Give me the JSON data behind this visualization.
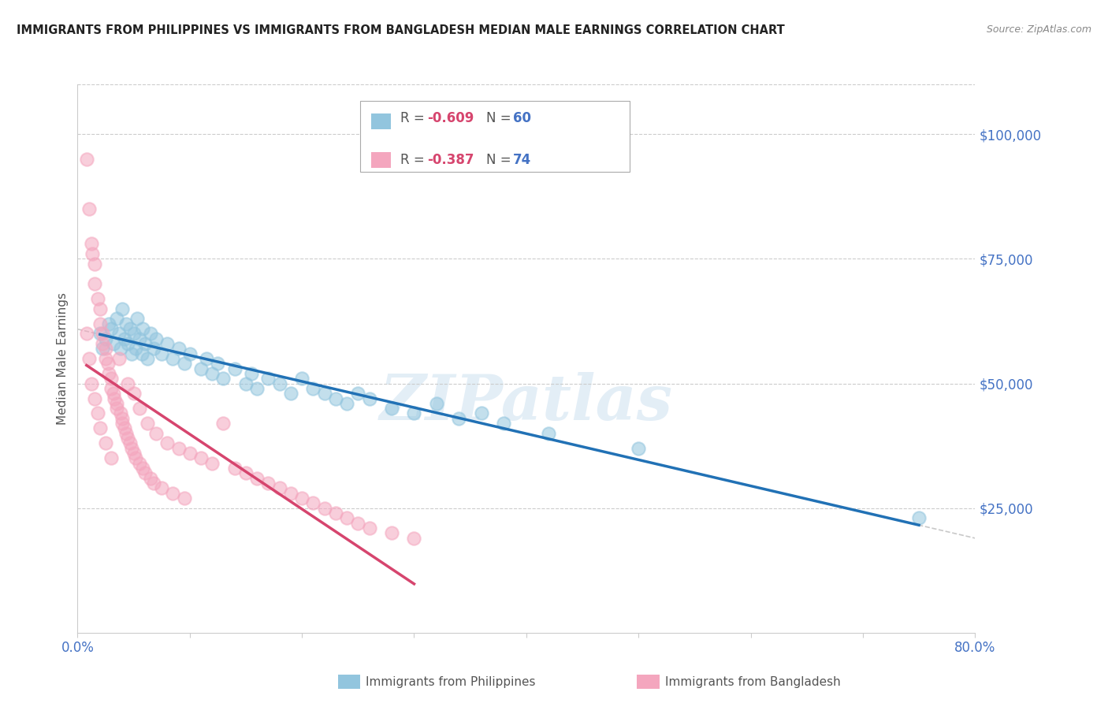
{
  "title": "IMMIGRANTS FROM PHILIPPINES VS IMMIGRANTS FROM BANGLADESH MEDIAN MALE EARNINGS CORRELATION CHART",
  "source": "Source: ZipAtlas.com",
  "ylabel": "Median Male Earnings",
  "yticks": [
    0,
    25000,
    50000,
    75000,
    100000
  ],
  "ytick_labels": [
    "",
    "$25,000",
    "$50,000",
    "$75,000",
    "$100,000"
  ],
  "xlim": [
    0.0,
    0.8
  ],
  "ylim": [
    0,
    110000
  ],
  "legend_blue_r": "R = -0.609",
  "legend_blue_n": "N = 60",
  "legend_pink_r": "R = -0.387",
  "legend_pink_n": "N = 74",
  "blue_color": "#92c5de",
  "pink_color": "#f4a6be",
  "line_blue": "#2171b5",
  "line_pink": "#d6456e",
  "line_gray": "#bbbbbb",
  "watermark": "ZIPatlas",
  "axis_label_color": "#4472c4",
  "title_color": "#222222",
  "source_color": "#888888",
  "legend_r_color": "#d6456e",
  "legend_n_color": "#4472c4",
  "blue_scatter_x": [
    0.02,
    0.022,
    0.025,
    0.028,
    0.03,
    0.032,
    0.035,
    0.037,
    0.038,
    0.04,
    0.042,
    0.043,
    0.045,
    0.047,
    0.048,
    0.05,
    0.052,
    0.053,
    0.055,
    0.057,
    0.058,
    0.06,
    0.062,
    0.065,
    0.068,
    0.07,
    0.075,
    0.08,
    0.085,
    0.09,
    0.095,
    0.1,
    0.11,
    0.115,
    0.12,
    0.125,
    0.13,
    0.14,
    0.15,
    0.155,
    0.16,
    0.17,
    0.18,
    0.19,
    0.2,
    0.21,
    0.22,
    0.23,
    0.24,
    0.25,
    0.26,
    0.28,
    0.3,
    0.32,
    0.34,
    0.36,
    0.38,
    0.42,
    0.5,
    0.75
  ],
  "blue_scatter_y": [
    60000,
    57000,
    59000,
    62000,
    61000,
    58000,
    63000,
    60000,
    57000,
    65000,
    59000,
    62000,
    58000,
    61000,
    56000,
    60000,
    57000,
    63000,
    59000,
    56000,
    61000,
    58000,
    55000,
    60000,
    57000,
    59000,
    56000,
    58000,
    55000,
    57000,
    54000,
    56000,
    53000,
    55000,
    52000,
    54000,
    51000,
    53000,
    50000,
    52000,
    49000,
    51000,
    50000,
    48000,
    51000,
    49000,
    48000,
    47000,
    46000,
    48000,
    47000,
    45000,
    44000,
    46000,
    43000,
    44000,
    42000,
    40000,
    37000,
    23000
  ],
  "pink_scatter_x": [
    0.008,
    0.01,
    0.012,
    0.013,
    0.015,
    0.015,
    0.018,
    0.02,
    0.02,
    0.022,
    0.022,
    0.025,
    0.025,
    0.027,
    0.028,
    0.03,
    0.03,
    0.032,
    0.033,
    0.035,
    0.035,
    0.037,
    0.038,
    0.04,
    0.04,
    0.042,
    0.043,
    0.045,
    0.045,
    0.047,
    0.048,
    0.05,
    0.05,
    0.052,
    0.055,
    0.055,
    0.058,
    0.06,
    0.062,
    0.065,
    0.068,
    0.07,
    0.075,
    0.08,
    0.085,
    0.09,
    0.095,
    0.1,
    0.11,
    0.12,
    0.13,
    0.14,
    0.15,
    0.16,
    0.17,
    0.18,
    0.19,
    0.2,
    0.21,
    0.22,
    0.23,
    0.24,
    0.25,
    0.26,
    0.28,
    0.3,
    0.008,
    0.01,
    0.012,
    0.015,
    0.018,
    0.02,
    0.025,
    0.03
  ],
  "pink_scatter_y": [
    95000,
    85000,
    78000,
    76000,
    74000,
    70000,
    67000,
    65000,
    62000,
    60000,
    58000,
    57000,
    55000,
    54000,
    52000,
    51000,
    49000,
    48000,
    47000,
    46000,
    45000,
    55000,
    44000,
    43000,
    42000,
    41000,
    40000,
    39000,
    50000,
    38000,
    37000,
    36000,
    48000,
    35000,
    34000,
    45000,
    33000,
    32000,
    42000,
    31000,
    30000,
    40000,
    29000,
    38000,
    28000,
    37000,
    27000,
    36000,
    35000,
    34000,
    42000,
    33000,
    32000,
    31000,
    30000,
    29000,
    28000,
    27000,
    26000,
    25000,
    24000,
    23000,
    22000,
    21000,
    20000,
    19000,
    60000,
    55000,
    50000,
    47000,
    44000,
    41000,
    38000,
    35000
  ]
}
